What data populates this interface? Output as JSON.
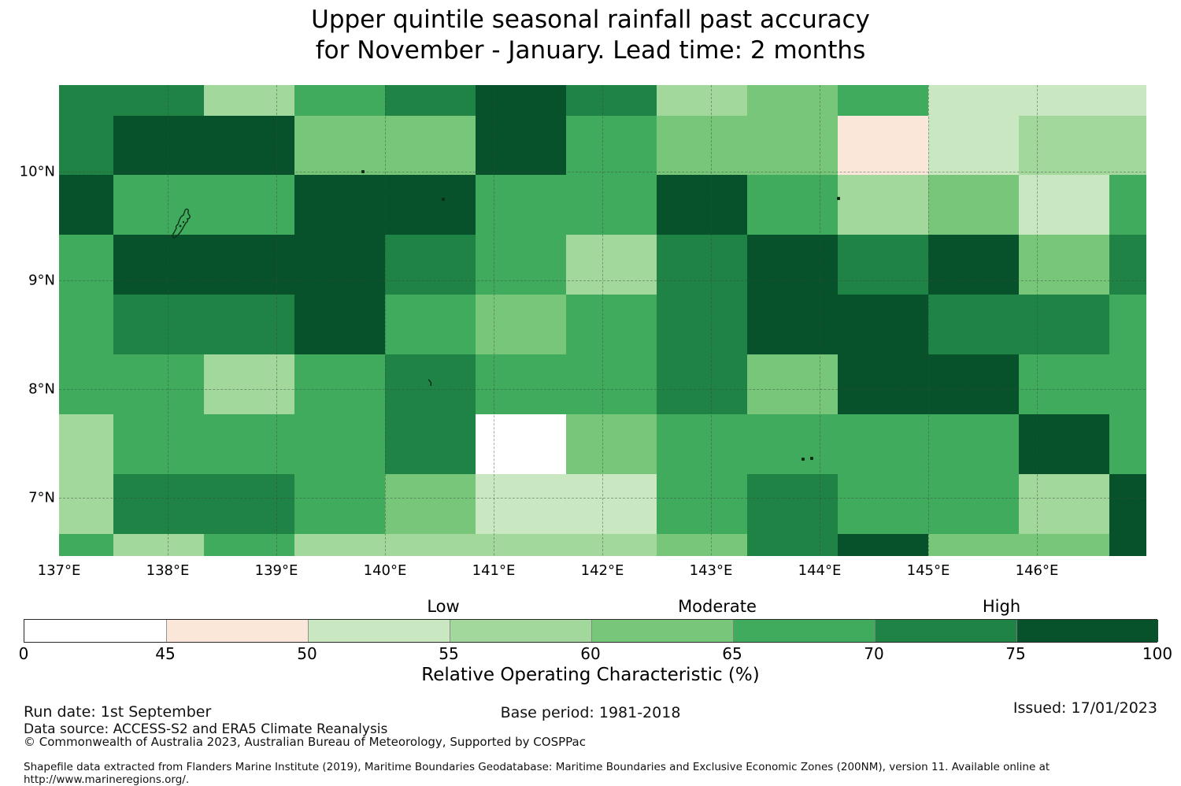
{
  "title": {
    "line1": "Upper quintile seasonal rainfall past accuracy",
    "line2": "for November - January. Lead time: 2 months"
  },
  "chart_data": {
    "type": "heatmap",
    "title": "Upper quintile seasonal rainfall past accuracy for November - January. Lead time: 2 months",
    "xlabel": "Longitude",
    "ylabel": "Latitude",
    "value_label": "Relative Operating Characteristic (%)",
    "lon_edges": [
      137.0,
      137.5,
      138.33,
      139.17,
      140.0,
      140.83,
      141.67,
      142.5,
      143.33,
      144.17,
      145.0,
      145.83,
      146.67,
      147.0
    ],
    "lat_edges": [
      10.8,
      10.52,
      9.97,
      9.42,
      8.87,
      8.32,
      7.77,
      7.22,
      6.67,
      6.47
    ],
    "bins": [
      {
        "range": "0-45",
        "color": "#ffffff"
      },
      {
        "range": "45-50",
        "color": "#fbe6da"
      },
      {
        "range": "50-55",
        "color": "#c9e8c1"
      },
      {
        "range": "55-60",
        "color": "#a2d89b"
      },
      {
        "range": "60-65",
        "color": "#78c679"
      },
      {
        "range": "65-70",
        "color": "#41ab5d"
      },
      {
        "range": "70-75",
        "color": "#208346"
      },
      {
        "range": "75-100",
        "color": "#07512b"
      }
    ],
    "values": [
      [
        "70-75",
        "70-75",
        "55-60",
        "65-70",
        "70-75",
        "75-100",
        "70-75",
        "55-60",
        "60-65",
        "65-70",
        "50-55",
        "50-55",
        "50-55"
      ],
      [
        "70-75",
        "75-100",
        "75-100",
        "60-65",
        "60-65",
        "75-100",
        "65-70",
        "60-65",
        "60-65",
        "45-50",
        "50-55",
        "55-60",
        "55-60"
      ],
      [
        "75-100",
        "65-70",
        "65-70",
        "75-100",
        "75-100",
        "65-70",
        "65-70",
        "75-100",
        "65-70",
        "55-60",
        "60-65",
        "50-55",
        "65-70"
      ],
      [
        "65-70",
        "75-100",
        "75-100",
        "75-100",
        "70-75",
        "65-70",
        "55-60",
        "70-75",
        "75-100",
        "70-75",
        "75-100",
        "60-65",
        "70-75"
      ],
      [
        "65-70",
        "70-75",
        "70-75",
        "75-100",
        "65-70",
        "60-65",
        "65-70",
        "70-75",
        "75-100",
        "75-100",
        "70-75",
        "70-75",
        "65-70"
      ],
      [
        "65-70",
        "65-70",
        "55-60",
        "65-70",
        "70-75",
        "65-70",
        "65-70",
        "70-75",
        "60-65",
        "75-100",
        "75-100",
        "65-70",
        "65-70"
      ],
      [
        "55-60",
        "65-70",
        "65-70",
        "65-70",
        "70-75",
        "0-45",
        "60-65",
        "65-70",
        "65-70",
        "65-70",
        "65-70",
        "75-100",
        "65-70"
      ],
      [
        "55-60",
        "70-75",
        "70-75",
        "65-70",
        "60-65",
        "50-55",
        "50-55",
        "65-70",
        "70-75",
        "65-70",
        "65-70",
        "55-60",
        "75-100"
      ],
      [
        "65-70",
        "55-60",
        "65-70",
        "55-60",
        "55-60",
        "55-60",
        "55-60",
        "60-65",
        "70-75",
        "75-100",
        "60-65",
        "60-65",
        "75-100"
      ]
    ],
    "gridlines": {
      "lon": [
        138,
        139,
        140,
        141,
        142,
        143,
        144,
        145,
        146
      ],
      "lat": [
        10,
        9,
        8,
        7
      ]
    },
    "x_ticks": [
      {
        "lon": 137,
        "label": "137°E"
      },
      {
        "lon": 138,
        "label": "138°E"
      },
      {
        "lon": 139,
        "label": "139°E"
      },
      {
        "lon": 140,
        "label": "140°E"
      },
      {
        "lon": 141,
        "label": "141°E"
      },
      {
        "lon": 142,
        "label": "142°E"
      },
      {
        "lon": 143,
        "label": "143°E"
      },
      {
        "lon": 144,
        "label": "144°E"
      },
      {
        "lon": 145,
        "label": "145°E"
      },
      {
        "lon": 146,
        "label": "146°E"
      }
    ],
    "y_ticks": [
      {
        "lat": 10,
        "label": "10°N"
      },
      {
        "lat": 9,
        "label": "9°N"
      },
      {
        "lat": 8,
        "label": "8°N"
      },
      {
        "lat": 7,
        "label": "7°N"
      }
    ],
    "features": [
      {
        "kind": "island-outline",
        "lon": 138.13,
        "lat": 9.52
      },
      {
        "kind": "islet-dot",
        "lon": 139.78,
        "lat": 10.02
      },
      {
        "kind": "islet-dot",
        "lon": 140.52,
        "lat": 9.76
      },
      {
        "kind": "islet-squiggle",
        "lon": 140.39,
        "lat": 8.13
      },
      {
        "kind": "islet-dot",
        "lon": 143.83,
        "lat": 7.37
      },
      {
        "kind": "islet-dot",
        "lon": 143.91,
        "lat": 7.38
      },
      {
        "kind": "islet-dot",
        "lon": 144.16,
        "lat": 9.77
      }
    ]
  },
  "colorbar": {
    "zone_labels": [
      {
        "text": "Low"
      },
      {
        "text": "Moderate"
      },
      {
        "text": "High"
      }
    ],
    "tick_labels": [
      "0",
      "45",
      "50",
      "55",
      "60",
      "65",
      "70",
      "75",
      "100"
    ],
    "title": "Relative Operating Characteristic (%)"
  },
  "footer": {
    "run_date": "Run date: 1st September",
    "base_period": "Base period: 1981-2018",
    "issued": "Issued: 17/01/2023",
    "data_source": "Data source: ACCESS-S2 and ERA5 Climate Reanalysis",
    "copyright": "© Commonwealth of Australia 2023, Australian Bureau of Meteorology, Supported by COSPPac",
    "shapefile_note": "Shapefile data extracted from Flanders Marine Institute (2019), Maritime Boundaries Geodatabase: Maritime Boundaries and Exclusive Economic Zones (200NM), version 11. Available online at http://www.marineregions.org/."
  }
}
